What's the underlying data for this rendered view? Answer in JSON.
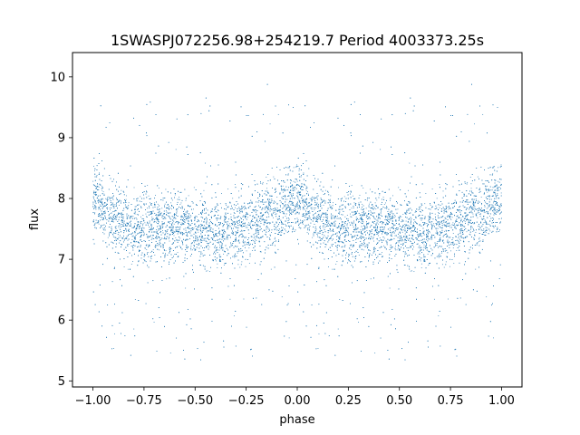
{
  "chart_data": {
    "type": "scatter",
    "title": "1SWASPJ072256.98+254219.7 Period 4003373.25s",
    "xlabel": "phase",
    "ylabel": "flux",
    "xlim": [
      -1.1,
      1.1
    ],
    "ylim": [
      4.9,
      10.4
    ],
    "xticks": [
      -1.0,
      -0.75,
      -0.5,
      -0.25,
      0.0,
      0.25,
      0.5,
      0.75,
      1.0
    ],
    "xtick_labels": [
      "−1.00",
      "−0.75",
      "−0.50",
      "−0.25",
      "0.00",
      "0.25",
      "0.50",
      "0.75",
      "1.00"
    ],
    "yticks": [
      5,
      6,
      7,
      8,
      9,
      10
    ],
    "ytick_labels": [
      "5",
      "6",
      "7",
      "8",
      "9",
      "10"
    ],
    "grid": false,
    "marker_color": "#1f77b4",
    "series": [
      {
        "values_phase_profile": {
          "phase": [
            0.0,
            0.1,
            0.2,
            0.3,
            0.4,
            0.5,
            0.6,
            0.7,
            0.8,
            0.9,
            1.0
          ],
          "median_flux": [
            8.0,
            7.7,
            7.5,
            7.55,
            7.5,
            7.5,
            7.45,
            7.5,
            7.6,
            7.75,
            8.0
          ]
        }
      }
    ]
  }
}
